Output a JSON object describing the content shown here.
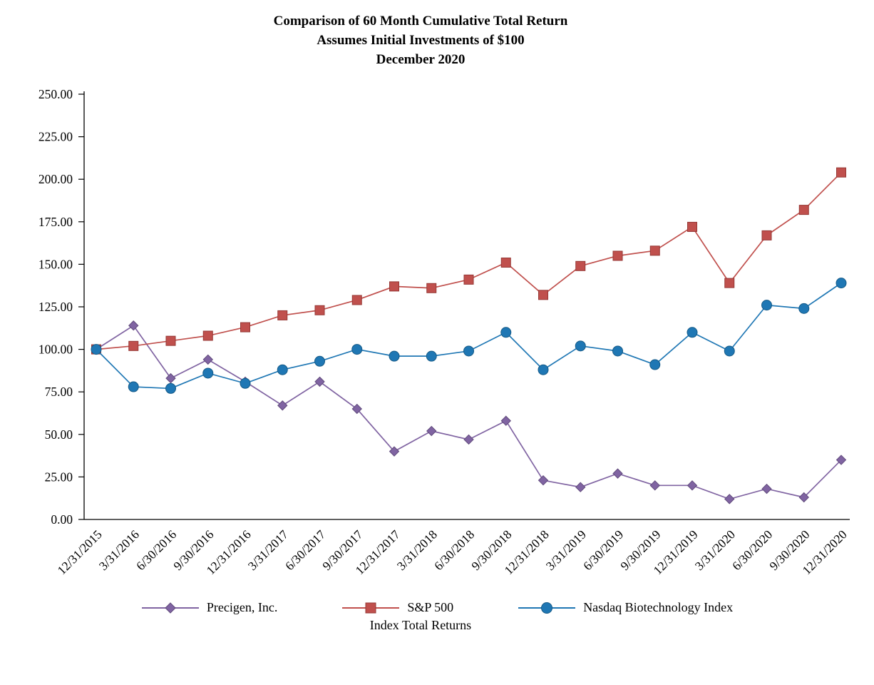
{
  "title": {
    "line1": "Comparison of 60 Month Cumulative Total Return",
    "line2": "Assumes Initial Investments of $100",
    "line3": "December 2020"
  },
  "legend_footer": "Index Total Returns",
  "chart_data": {
    "type": "line",
    "title": "Comparison of 60 Month Cumulative Total Return — Assumes Initial Investments of $100 — December 2020",
    "xlabel": "",
    "ylabel": "",
    "ylim": [
      0,
      250
    ],
    "ytick_step": 25,
    "ytick_labels": [
      "0.00",
      "25.00",
      "50.00",
      "75.00",
      "100.00",
      "125.00",
      "150.00",
      "175.00",
      "200.00",
      "225.00",
      "250.00"
    ],
    "grid": false,
    "legend_position": "bottom",
    "x": [
      "12/31/2015",
      "3/31/2016",
      "6/30/2016",
      "9/30/2016",
      "12/31/2016",
      "3/31/2017",
      "6/30/2017",
      "9/30/2017",
      "12/31/2017",
      "3/31/2018",
      "6/30/2018",
      "9/30/2018",
      "12/31/2018",
      "3/31/2019",
      "6/30/2019",
      "9/30/2019",
      "12/31/2019",
      "3/31/2020",
      "6/30/2020",
      "9/30/2020",
      "12/31/2020"
    ],
    "series": [
      {
        "name": "Precigen, Inc.",
        "marker": "diamond",
        "color": "#8064A2",
        "edge_color": "#604A7B",
        "values": [
          100,
          114,
          83,
          94,
          81,
          67,
          81,
          65,
          40,
          52,
          47,
          58,
          23,
          19,
          27,
          20,
          20,
          12,
          18,
          13,
          35
        ]
      },
      {
        "name": "S&P 500",
        "marker": "square",
        "color": "#C0504D",
        "edge_color": "#953734",
        "values": [
          100,
          102,
          105,
          108,
          113,
          120,
          123,
          129,
          137,
          136,
          141,
          151,
          132,
          149,
          155,
          158,
          172,
          139,
          167,
          182,
          204
        ]
      },
      {
        "name": "Nasdaq Biotechnology Index",
        "marker": "circle",
        "color": "#1F77B4",
        "edge_color": "#155A87",
        "values": [
          100,
          78,
          77,
          86,
          80,
          88,
          93,
          100,
          96,
          96,
          99,
          110,
          88,
          102,
          99,
          91,
          110,
          99,
          126,
          124,
          139
        ]
      }
    ]
  }
}
